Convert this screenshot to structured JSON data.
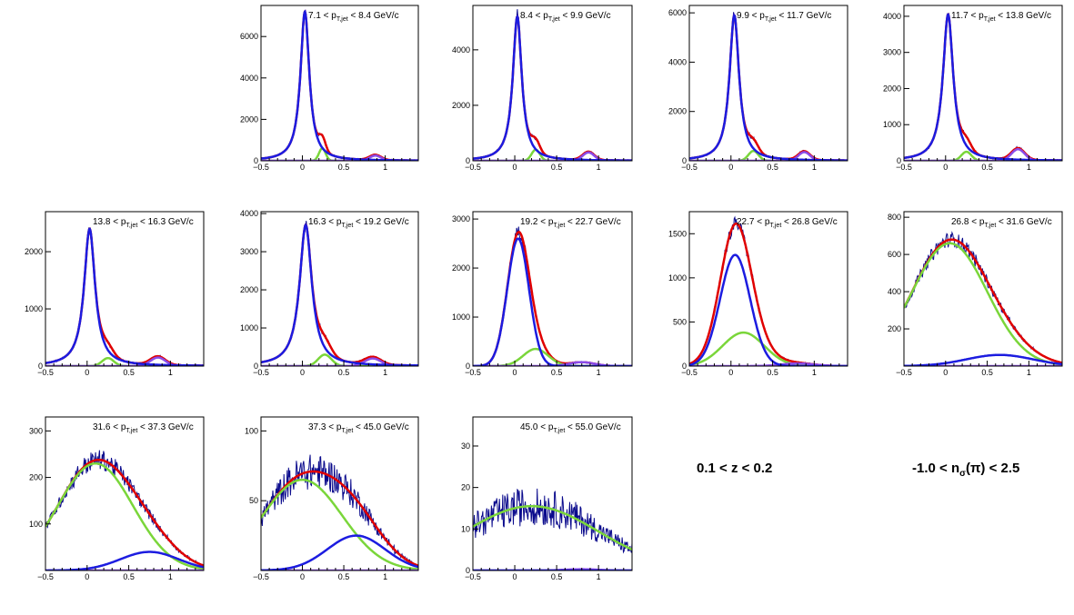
{
  "colors": {
    "data": "#0a0a8c",
    "total_fit": "#e00000",
    "pion_fit": "#1c1ce0",
    "kaon_fit": "#7ad63a",
    "proton_fit": "#8a4be8",
    "frame": "#000000"
  },
  "captions": {
    "z_range": "0.1 < z < 0.2",
    "nsigma_prefix": "-1.0 < n",
    "nsigma_sub": "σ",
    "nsigma_suffix": "(π) < 2.5"
  },
  "chart_data": [
    {
      "type": "line",
      "label_lo": "7.1",
      "label_hi": "8.4 GeV/c",
      "label_var": "p",
      "label_sub": "T,jet",
      "xlim": [
        -0.5,
        1.4
      ],
      "ylim": [
        0,
        7500
      ],
      "yticks": [
        0,
        2000,
        4000,
        6000
      ],
      "xticks": [
        -0.5,
        0,
        0.5,
        1
      ],
      "pion": {
        "A": 7200,
        "mu": 0.03,
        "sigma": 0.065
      },
      "kaon": {
        "A": 600,
        "mu": 0.24,
        "sigma": 0.04
      },
      "proton": {
        "A": 250,
        "mu": 0.88,
        "sigma": 0.07
      },
      "noise": 0.06,
      "show_total": true
    },
    {
      "type": "line",
      "label_lo": "8.4",
      "label_hi": "9.9 GeV/c",
      "label_var": "p",
      "label_sub": "T,jet",
      "xlim": [
        -0.5,
        1.4
      ],
      "ylim": [
        0,
        5600
      ],
      "yticks": [
        0,
        2000,
        4000
      ],
      "xticks": [
        -0.5,
        0,
        0.5,
        1
      ],
      "pion": {
        "A": 5200,
        "mu": 0.03,
        "sigma": 0.065
      },
      "kaon": {
        "A": 400,
        "mu": 0.25,
        "sigma": 0.05
      },
      "proton": {
        "A": 300,
        "mu": 0.88,
        "sigma": 0.07
      },
      "noise": 0.06,
      "show_total": true
    },
    {
      "type": "line",
      "label_lo": "9.9",
      "label_hi": "11.7 GeV/c",
      "label_var": "p",
      "label_sub": "T,jet",
      "xlim": [
        -0.5,
        1.4
      ],
      "ylim": [
        0,
        6300
      ],
      "yticks": [
        0,
        2000,
        4000,
        6000
      ],
      "xticks": [
        -0.5,
        0,
        0.5,
        1
      ],
      "pion": {
        "A": 5900,
        "mu": 0.04,
        "sigma": 0.07
      },
      "kaon": {
        "A": 400,
        "mu": 0.27,
        "sigma": 0.06
      },
      "proton": {
        "A": 350,
        "mu": 0.88,
        "sigma": 0.07
      },
      "noise": 0.06,
      "show_total": true
    },
    {
      "type": "line",
      "label_lo": "11.7",
      "label_hi": "13.8 GeV/c",
      "label_var": "p",
      "label_sub": "T,jet",
      "xlim": [
        -0.5,
        1.4
      ],
      "ylim": [
        0,
        4300
      ],
      "yticks": [
        0,
        1000,
        2000,
        3000,
        4000
      ],
      "xticks": [
        -0.5,
        0,
        0.5,
        1
      ],
      "pion": {
        "A": 4050,
        "mu": 0.03,
        "sigma": 0.075
      },
      "kaon": {
        "A": 250,
        "mu": 0.25,
        "sigma": 0.06
      },
      "proton": {
        "A": 320,
        "mu": 0.87,
        "sigma": 0.08
      },
      "noise": 0.06,
      "show_total": true
    },
    {
      "type": "line",
      "label_lo": "13.8",
      "label_hi": "16.3 GeV/c",
      "label_var": "p",
      "label_sub": "T,jet",
      "xlim": [
        -0.5,
        1.4
      ],
      "ylim": [
        0,
        2700
      ],
      "yticks": [
        0,
        1000,
        2000
      ],
      "xticks": [
        -0.5,
        0,
        0.5,
        1
      ],
      "pion": {
        "A": 2400,
        "mu": 0.03,
        "sigma": 0.08
      },
      "kaon": {
        "A": 140,
        "mu": 0.25,
        "sigma": 0.07
      },
      "proton": {
        "A": 150,
        "mu": 0.85,
        "sigma": 0.09
      },
      "noise": 0.06,
      "show_total": true
    },
    {
      "type": "line",
      "label_lo": "16.3",
      "label_hi": "19.2 GeV/c",
      "label_var": "p",
      "label_sub": "T,jet",
      "xlim": [
        -0.5,
        1.4
      ],
      "ylim": [
        0,
        4050
      ],
      "yticks": [
        0,
        1000,
        2000,
        3000,
        4000
      ],
      "xticks": [
        -0.5,
        0,
        0.5,
        1
      ],
      "pion": {
        "A": 3700,
        "mu": 0.04,
        "sigma": 0.09
      },
      "kaon": {
        "A": 300,
        "mu": 0.27,
        "sigma": 0.08
      },
      "proton": {
        "A": 200,
        "mu": 0.85,
        "sigma": 0.1
      },
      "noise": 0.05,
      "show_total": true
    },
    {
      "type": "line",
      "label_lo": "19.2",
      "label_hi": "22.7 GeV/c",
      "label_var": "p",
      "label_sub": "T,jet",
      "xlim": [
        -0.5,
        1.4
      ],
      "ylim": [
        0,
        3150
      ],
      "yticks": [
        0,
        1000,
        2000,
        3000
      ],
      "xticks": [
        -0.5,
        0,
        0.5,
        1
      ],
      "pion": {
        "A": 2600,
        "mu": 0.04,
        "sigma": 0.13
      },
      "kaon": {
        "A": 350,
        "mu": 0.25,
        "sigma": 0.15
      },
      "proton": {
        "A": 80,
        "mu": 0.8,
        "sigma": 0.15
      },
      "noise": 0.05,
      "show_total": true
    },
    {
      "type": "line",
      "label_lo": "22.7",
      "label_hi": "26.8 GeV/c",
      "label_var": "p",
      "label_sub": "T,jet",
      "xlim": [
        -0.5,
        1.4
      ],
      "ylim": [
        0,
        1750
      ],
      "yticks": [
        0,
        500,
        1000,
        1500
      ],
      "xticks": [
        -0.5,
        0,
        0.5,
        1
      ],
      "pion": {
        "A": 1260,
        "mu": 0.05,
        "sigma": 0.18
      },
      "kaon": {
        "A": 380,
        "mu": 0.15,
        "sigma": 0.25
      },
      "proton": {
        "A": 30,
        "mu": 0.8,
        "sigma": 0.2
      },
      "noise": 0.05,
      "show_total": true
    },
    {
      "type": "line",
      "label_lo": "26.8",
      "label_hi": "31.6 GeV/c",
      "label_var": "p",
      "label_sub": "T,jet",
      "xlim": [
        -0.5,
        1.4
      ],
      "ylim": [
        0,
        830
      ],
      "yticks": [
        200,
        400,
        600,
        800
      ],
      "xticks": [
        -0.5,
        0,
        0.5,
        1
      ],
      "pion": {
        "A": 60,
        "mu": 0.65,
        "sigma": 0.4
      },
      "kaon": {
        "A": 660,
        "mu": 0.05,
        "sigma": 0.45
      },
      "proton": {
        "A": 0,
        "mu": 0.8,
        "sigma": 0.2
      },
      "noise": 0.06,
      "show_total": true
    },
    {
      "type": "line",
      "label_lo": "31.6",
      "label_hi": "37.3 GeV/c",
      "label_var": "p",
      "label_sub": "T,jet",
      "xlim": [
        -0.5,
        1.4
      ],
      "ylim": [
        0,
        330
      ],
      "yticks": [
        100,
        200,
        300
      ],
      "xticks": [
        -0.5,
        0,
        0.5,
        1
      ],
      "pion": {
        "A": 40,
        "mu": 0.75,
        "sigma": 0.35
      },
      "kaon": {
        "A": 230,
        "mu": 0.1,
        "sigma": 0.45
      },
      "proton": {
        "A": 0,
        "mu": 0.8,
        "sigma": 0.2
      },
      "noise": 0.09,
      "show_total": true
    },
    {
      "type": "line",
      "label_lo": "37.3",
      "label_hi": "45.0 GeV/c",
      "label_var": "p",
      "label_sub": "T,jet",
      "xlim": [
        -0.5,
        1.4
      ],
      "ylim": [
        0,
        110
      ],
      "yticks": [
        50,
        100
      ],
      "xticks": [
        -0.5,
        0,
        0.5,
        1
      ],
      "pion": {
        "A": 25,
        "mu": 0.65,
        "sigma": 0.35
      },
      "kaon": {
        "A": 65,
        "mu": 0.0,
        "sigma": 0.48
      },
      "proton": {
        "A": 0,
        "mu": 0.8,
        "sigma": 0.2
      },
      "noise": 0.18,
      "show_total": true
    },
    {
      "type": "line",
      "label_lo": "45.0",
      "label_hi": "55.0 GeV/c",
      "label_var": "p",
      "label_sub": "T,jet",
      "xlim": [
        -0.5,
        1.4
      ],
      "ylim": [
        0,
        37
      ],
      "yticks": [
        0,
        10,
        20,
        30
      ],
      "xticks": [
        -0.5,
        0,
        0.5,
        1
      ],
      "pion": {
        "A": 0,
        "mu": 0.3,
        "sigma": 0.3
      },
      "kaon": {
        "A": 15.5,
        "mu": 0.2,
        "sigma": 0.8
      },
      "proton": {
        "A": 0.3,
        "mu": 0.8,
        "sigma": 0.2
      },
      "noise": 0.3,
      "show_total": false
    }
  ]
}
